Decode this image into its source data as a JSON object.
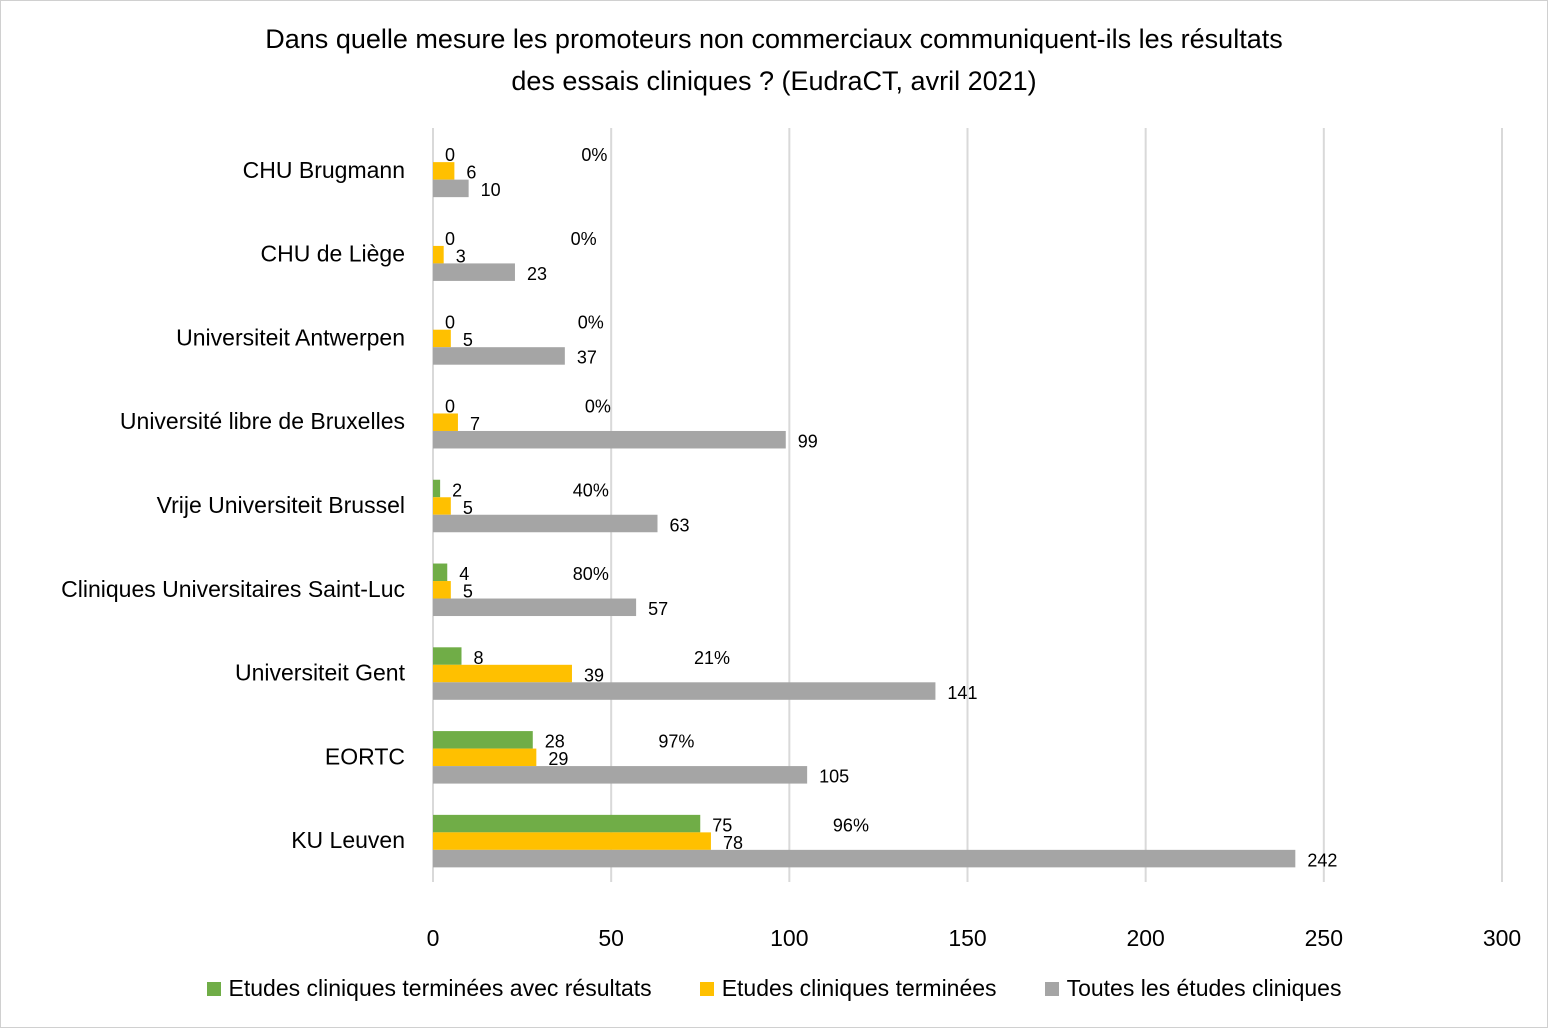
{
  "chart_data": {
    "type": "bar",
    "orientation": "horizontal",
    "title": "Dans quelle mesure les promoteurs non commerciaux communiquent-ils les résultats des essais cliniques ? (EudraCT, avril 2021)",
    "title_lines": [
      "Dans quelle mesure les promoteurs non commerciaux communiquent-ils les résultats",
      "des essais cliniques ? (EudraCT, avril 2021)"
    ],
    "xlabel": "",
    "ylabel": "",
    "xlim": [
      0,
      300
    ],
    "xticks": [
      0,
      50,
      100,
      150,
      200,
      250,
      300
    ],
    "grid": true,
    "legend_position": "bottom",
    "categories": [
      "CHU Brugmann",
      "CHU de Liège",
      "Universiteit Antwerpen",
      "Université libre de Bruxelles",
      "Vrije Universiteit Brussel",
      "Cliniques Universitaires Saint-Luc",
      "Universiteit Gent",
      "EORTC",
      "KU Leuven"
    ],
    "series": [
      {
        "name": "Etudes cliniques terminées avec résultats",
        "color": "#70ad47",
        "values": [
          0,
          0,
          0,
          0,
          2,
          4,
          8,
          28,
          75
        ]
      },
      {
        "name": "Etudes cliniques terminées",
        "color": "#ffc000",
        "values": [
          6,
          3,
          5,
          7,
          5,
          5,
          39,
          29,
          78
        ]
      },
      {
        "name": "Toutes les études cliniques",
        "color": "#a5a5a5",
        "values": [
          10,
          23,
          37,
          99,
          63,
          57,
          141,
          105,
          242
        ]
      }
    ],
    "percent_annotations": [
      "0%",
      "0%",
      "0%",
      "0%",
      "40%",
      "80%",
      "21%",
      "97%",
      "96%"
    ]
  }
}
